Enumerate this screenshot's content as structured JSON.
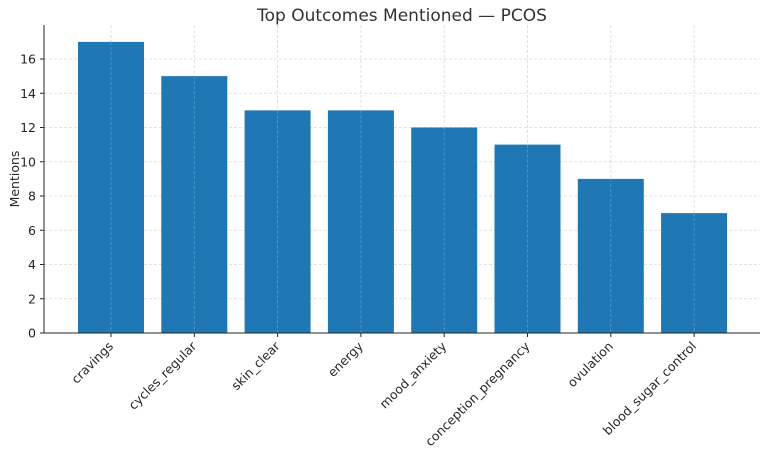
{
  "chart_data": {
    "type": "bar",
    "title": "Top Outcomes Mentioned — PCOS",
    "xlabel": "",
    "ylabel": "Mentions",
    "categories": [
      "cravings",
      "cycles_regular",
      "skin_clear",
      "energy",
      "mood_anxiety",
      "conception_pregnancy",
      "ovulation",
      "blood_sugar_control"
    ],
    "values": [
      17,
      15,
      13,
      13,
      12,
      11,
      9,
      7
    ],
    "ylim": [
      0,
      17.85
    ],
    "yticks": [
      0,
      2,
      4,
      6,
      8,
      10,
      12,
      14,
      16
    ],
    "grid": true,
    "legend": null,
    "bar_color": "#1f77b4",
    "xtick_rotation": 45
  }
}
